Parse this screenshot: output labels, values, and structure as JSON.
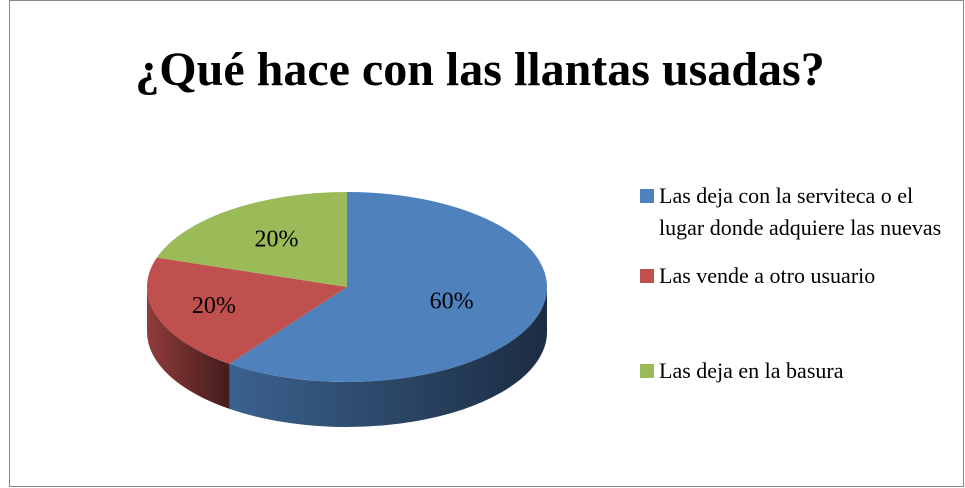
{
  "chart_data": {
    "type": "pie3d",
    "title": "¿Qué hace con las llantas usadas?",
    "categories": [
      "Las deja con la serviteca o el lugar donde adquiere las nuevas",
      "Las vende a otro usuario",
      "Las deja en la basura"
    ],
    "values": [
      60,
      20,
      20
    ],
    "value_labels": [
      "60%",
      "20%",
      "20%"
    ],
    "colors": [
      "#4f81bd",
      "#c0504d",
      "#9bbb59"
    ],
    "legend": "right"
  }
}
